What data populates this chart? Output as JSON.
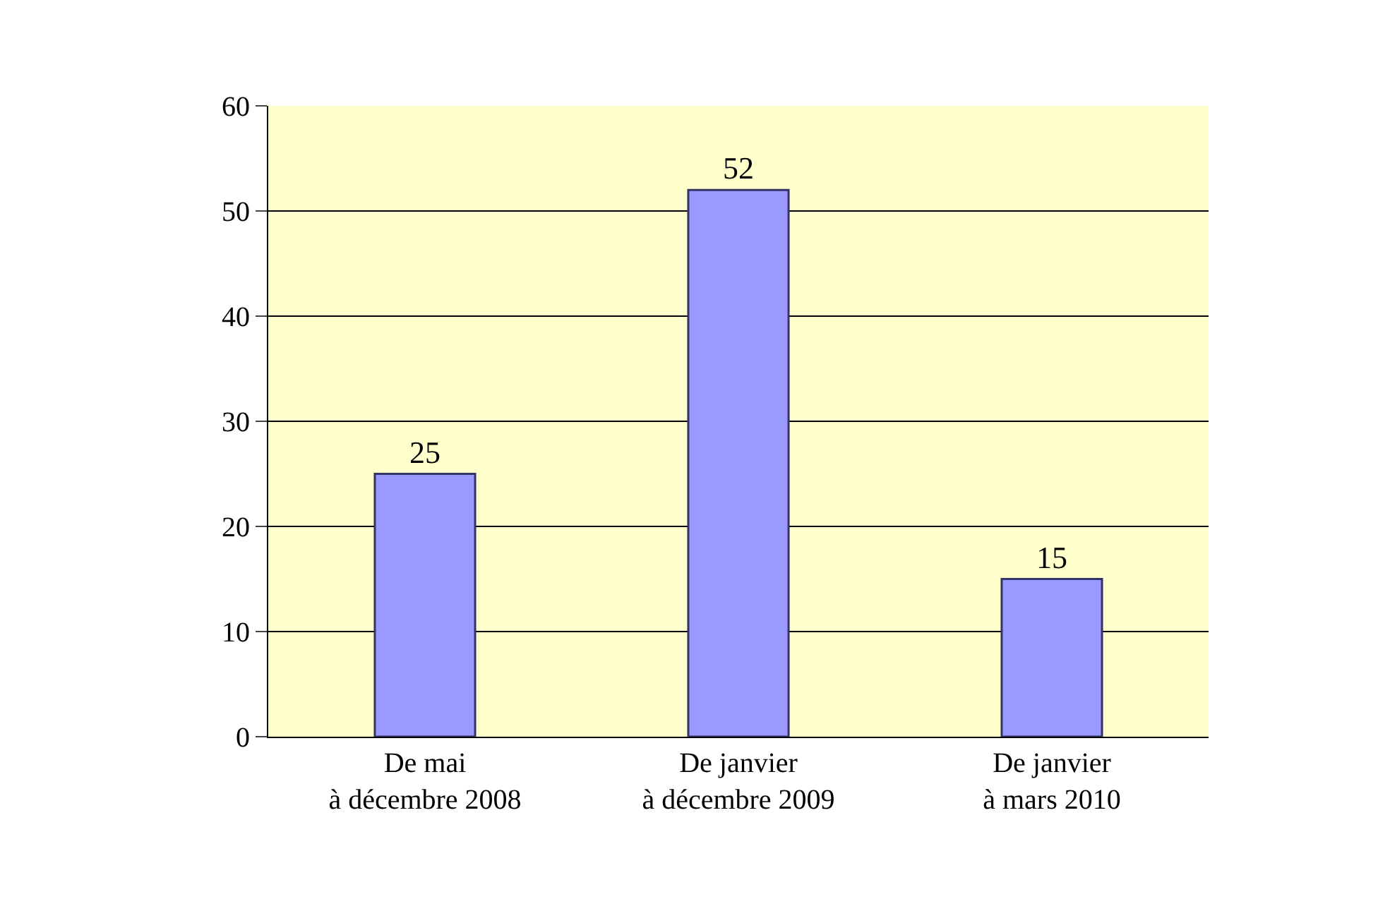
{
  "chart_data": {
    "type": "bar",
    "categories": [
      "De mai\nà décembre 2008",
      "De janvier\nà décembre 2009",
      "De janvier\nà mars 2010"
    ],
    "values": [
      25,
      52,
      15
    ],
    "color": "#9999ff",
    "ylim": [
      0,
      60
    ],
    "yticks": [
      0,
      10,
      20,
      30,
      40,
      50,
      60
    ],
    "grid": "y",
    "data_labels": true,
    "legend": false
  }
}
